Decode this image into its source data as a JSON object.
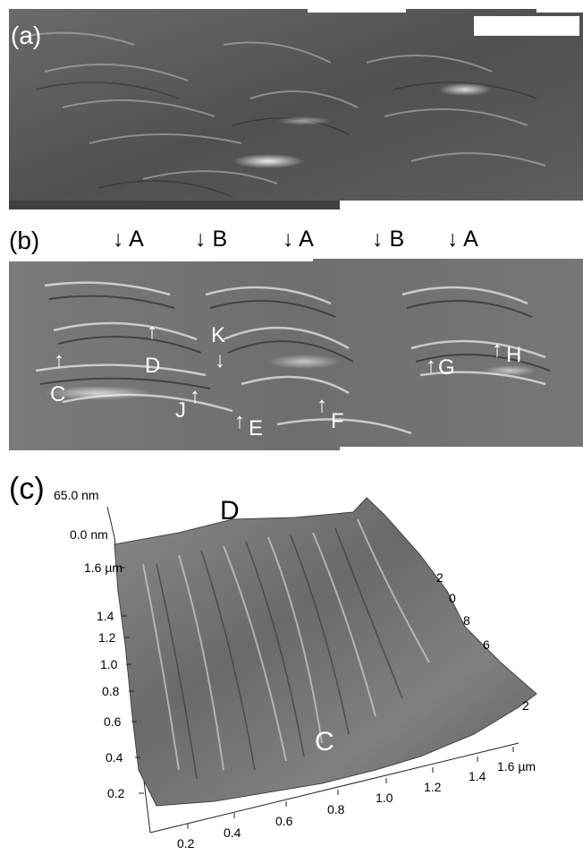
{
  "panels": {
    "a": {
      "label": "(a)"
    },
    "b": {
      "label": "(b)",
      "top_markers": [
        "↓ A",
        "↓ B",
        "↓ A",
        "↓ B",
        "↓ A"
      ],
      "annotations": [
        "C",
        "D",
        "K",
        "J",
        "E",
        "F",
        "G",
        "H"
      ]
    },
    "c": {
      "label": "(c)",
      "z_max": "65.0 nm",
      "z_min": "0.0 nm",
      "peak_labels": [
        "D",
        "C"
      ],
      "left_axis_ticks": [
        "1.6 µm",
        "1.4",
        "1.2",
        "1.0",
        "0.8",
        "0.6",
        "0.4",
        "0.2"
      ],
      "bottom_axis_ticks": [
        "0.2",
        "0.4",
        "0.6",
        "0.8",
        "1.0",
        "1.2",
        "1.4",
        "1.6 µm"
      ],
      "right_axis_fragments": [
        "2",
        "0",
        "8",
        "6",
        "2"
      ]
    }
  },
  "colors": {
    "scale_bar": "#ffffff",
    "image_bg": "#5a5a5a"
  }
}
